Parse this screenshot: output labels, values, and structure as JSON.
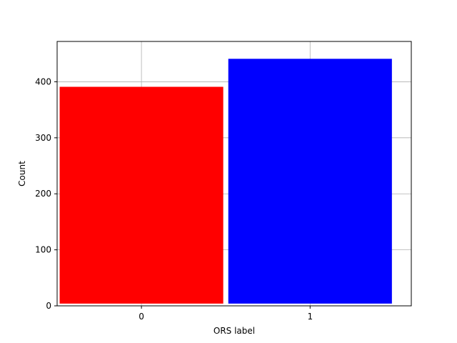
{
  "chart_data": {
    "type": "bar",
    "title": "",
    "xlabel": "ORS label",
    "ylabel": "Count",
    "categories": [
      "0",
      "1"
    ],
    "x": [
      0,
      1
    ],
    "values": [
      391,
      441
    ],
    "bar_bottom": 4,
    "colors": [
      "#ff0000",
      "#0000ff"
    ],
    "xlim": [
      -0.5,
      1.6
    ],
    "ylim": [
      0,
      472
    ],
    "yticks": [
      0,
      100,
      200,
      300,
      400
    ],
    "grid": true,
    "legend": "none"
  }
}
